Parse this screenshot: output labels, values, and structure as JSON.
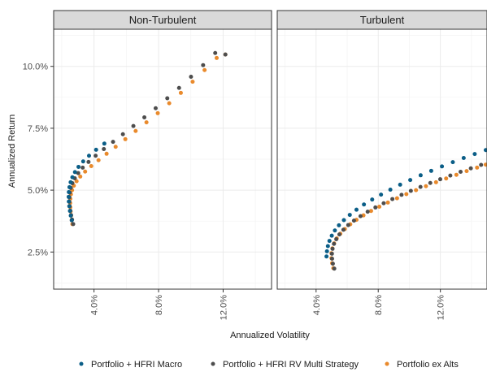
{
  "chart_data": {
    "type": "scatter",
    "xlabel": "Annualized Volatility",
    "ylabel": "Annualized Return",
    "xlim": [
      0.015,
      0.15
    ],
    "ylim": [
      0.01,
      0.115
    ],
    "x_ticks": [
      {
        "value": 0.04,
        "label": "4.0%"
      },
      {
        "value": 0.08,
        "label": "8.0%"
      },
      {
        "value": 0.12,
        "label": "12.0%"
      }
    ],
    "y_ticks": [
      {
        "value": 0.025,
        "label": "2.5%"
      },
      {
        "value": 0.05,
        "label": "5.0%"
      },
      {
        "value": 0.075,
        "label": "7.5%"
      },
      {
        "value": 0.1,
        "label": "10.0%"
      }
    ],
    "grid": true,
    "legend_position": "bottom",
    "colors": {
      "strip_bg": "#d9d9d9",
      "panel_border": "#333333",
      "grid": "#ebebeb"
    },
    "facets": [
      {
        "name": "Non-Turbulent",
        "series": [
          {
            "name": "Portfolio ex Alts",
            "color": "#e98a2c",
            "x": [
              0.0266,
              0.0262,
              0.0258,
              0.0255,
              0.0253,
              0.0252,
              0.0253,
              0.0257,
              0.0264,
              0.0275,
              0.0292,
              0.0315,
              0.0345,
              0.0383,
              0.0428,
              0.0478,
              0.0534,
              0.0594,
              0.0658,
              0.0725,
              0.0795,
              0.0866,
              0.0938,
              0.1011,
              0.1085,
              0.116,
              0.1214
            ],
            "y": [
              0.0363,
              0.038,
              0.0397,
              0.0414,
              0.0431,
              0.0448,
              0.0465,
              0.0483,
              0.05,
              0.0518,
              0.0536,
              0.0555,
              0.0575,
              0.0597,
              0.0621,
              0.0647,
              0.0675,
              0.0706,
              0.0739,
              0.0774,
              0.0811,
              0.0851,
              0.0893,
              0.0938,
              0.0985,
              0.1034,
              0.1048
            ]
          },
          {
            "name": "Portfolio + HFRI RV Multi Strategy",
            "color": "#4d4d4d",
            "x": [
              0.0271,
              0.0264,
              0.0258,
              0.0253,
              0.0249,
              0.0247,
              0.0247,
              0.025,
              0.0256,
              0.0266,
              0.0281,
              0.0302,
              0.033,
              0.0366,
              0.041,
              0.0461,
              0.0518,
              0.0579,
              0.0644,
              0.0712,
              0.0782,
              0.0854,
              0.0927,
              0.1001,
              0.1076,
              0.1151,
              0.1214
            ],
            "y": [
              0.0363,
              0.0381,
              0.0399,
              0.0417,
              0.0435,
              0.0453,
              0.0471,
              0.049,
              0.0509,
              0.0528,
              0.0548,
              0.0569,
              0.0591,
              0.0614,
              0.0639,
              0.0666,
              0.0695,
              0.0726,
              0.0759,
              0.0794,
              0.0831,
              0.0871,
              0.0913,
              0.0958,
              0.1005,
              0.1054,
              0.1048
            ]
          },
          {
            "name": "Portfolio + HFRI Macro",
            "color": "#0b5e87",
            "x": [
              0.0262,
              0.0256,
              0.0251,
              0.0247,
              0.0244,
              0.0243,
              0.0244,
              0.0248,
              0.0255,
              0.0266,
              0.0282,
              0.0304,
              0.0333,
              0.0369,
              0.0413,
              0.0464
            ],
            "y": [
              0.0378,
              0.0397,
              0.0416,
              0.0435,
              0.0454,
              0.0473,
              0.0492,
              0.0512,
              0.0532,
              0.0552,
              0.0573,
              0.0594,
              0.0616,
              0.0639,
              0.0663,
              0.0688
            ]
          }
        ]
      },
      {
        "name": "Turbulent",
        "series": [
          {
            "name": "Portfolio + HFRI Macro",
            "color": "#0b5e87",
            "x": [
              0.0467,
              0.047,
              0.0476,
              0.0486,
              0.0501,
              0.0521,
              0.0547,
              0.0579,
              0.0617,
              0.066,
              0.0708,
              0.0761,
              0.0818,
              0.0878,
              0.0941,
              0.1006,
              0.1073,
              0.1141,
              0.121,
              0.128,
              0.135,
              0.1421,
              0.1492
            ],
            "y": [
              0.0232,
              0.0253,
              0.0274,
              0.0295,
              0.0316,
              0.0337,
              0.0358,
              0.0379,
              0.04,
              0.0421,
              0.0442,
              0.0462,
              0.0482,
              0.0502,
              0.0522,
              0.0541,
              0.056,
              0.0578,
              0.0596,
              0.0613,
              0.063,
              0.0646,
              0.0662
            ]
          },
          {
            "name": "Portfolio ex Alts",
            "color": "#e98a2c",
            "x": [
              0.0511,
              0.0503,
              0.0499,
              0.0499,
              0.0505,
              0.0516,
              0.0533,
              0.0556,
              0.0585,
              0.062,
              0.066,
              0.0705,
              0.0754,
              0.0807,
              0.0862,
              0.0921,
              0.0981,
              0.1043,
              0.1107,
              0.1172,
              0.1237,
              0.1303,
              0.1369,
              0.1436,
              0.1492
            ],
            "y": [
              0.0185,
              0.0205,
              0.0225,
              0.0245,
              0.0265,
              0.0285,
              0.0305,
              0.0324,
              0.0343,
              0.0362,
              0.038,
              0.0398,
              0.0416,
              0.0433,
              0.045,
              0.0467,
              0.0484,
              0.05,
              0.0516,
              0.0532,
              0.0547,
              0.0562,
              0.0577,
              0.0591,
              0.0603
            ]
          },
          {
            "name": "Portfolio + HFRI RV Multi Strategy",
            "color": "#4d4d4d",
            "x": [
              0.0517,
              0.0508,
              0.0503,
              0.0502,
              0.0506,
              0.0515,
              0.053,
              0.055,
              0.0576,
              0.0607,
              0.0644,
              0.0686,
              0.0732,
              0.0782,
              0.0835,
              0.0891,
              0.095,
              0.101,
              0.1072,
              0.1135,
              0.1199,
              0.1264,
              0.133,
              0.1396,
              0.1462
            ],
            "y": [
              0.0183,
              0.0203,
              0.0223,
              0.0243,
              0.0263,
              0.0283,
              0.0302,
              0.0321,
              0.034,
              0.0359,
              0.0377,
              0.0395,
              0.0413,
              0.043,
              0.0447,
              0.0464,
              0.0481,
              0.0497,
              0.0513,
              0.0529,
              0.0544,
              0.0559,
              0.0574,
              0.0588,
              0.0602
            ]
          }
        ]
      }
    ],
    "legend": [
      {
        "label": "Portfolio + HFRI Macro",
        "color": "#0b5e87"
      },
      {
        "label": "Portfolio + HFRI RV Multi Strategy",
        "color": "#4d4d4d"
      },
      {
        "label": "Portfolio ex Alts",
        "color": "#e98a2c"
      }
    ]
  }
}
